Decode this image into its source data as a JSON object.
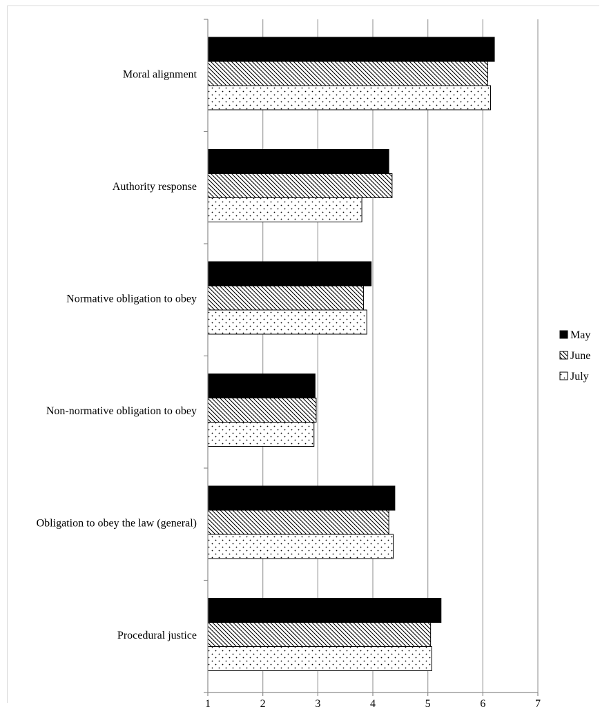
{
  "chart_data": {
    "type": "bar",
    "orientation": "horizontal",
    "title": "",
    "xlabel": "",
    "ylabel": "",
    "categories": [
      "Moral alignment",
      "Authority response",
      "Normative obligation to obey",
      "Non-normative obligation to obey",
      "Obligation to obey the law (general)",
      "Procedural justice"
    ],
    "series": [
      {
        "name": "May",
        "pattern": "solid",
        "color": "#000000",
        "values": [
          6.21,
          4.29,
          3.97,
          2.95,
          4.4,
          5.24
        ]
      },
      {
        "name": "June",
        "pattern": "diagonal",
        "color": "#000000",
        "values": [
          6.09,
          4.35,
          3.83,
          2.97,
          4.29,
          5.05
        ]
      },
      {
        "name": "July",
        "pattern": "dots",
        "color": "#000000",
        "values": [
          6.14,
          3.8,
          3.89,
          2.93,
          4.37,
          5.07
        ]
      }
    ],
    "xlim": [
      1,
      7
    ],
    "xticks": [
      1,
      2,
      3,
      4,
      5,
      6,
      7
    ],
    "grid": true,
    "legend_position": "right"
  }
}
